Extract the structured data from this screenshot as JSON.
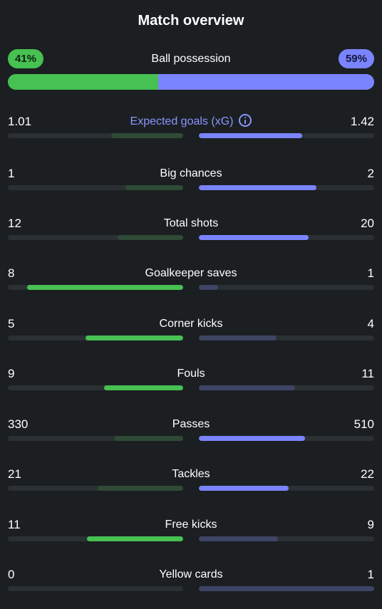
{
  "title": "Match overview",
  "possession": {
    "label": "Ball possession",
    "home_pct": "41%",
    "away_pct": "59%",
    "home_fraction": 0.41
  },
  "colors": {
    "home_win": "#47c152",
    "home_lose": "#2f4a36",
    "away_win": "#7a84ff",
    "away_lose": "#3e4463",
    "accent": "#8c95ff"
  },
  "stats": [
    {
      "label": "Expected goals (xG)",
      "home": "1.01",
      "away": "1.42",
      "home_fill": 0.41,
      "away_fill": 0.59,
      "home_wins": false,
      "away_wins": true,
      "accent": true,
      "icon": "info-icon"
    },
    {
      "label": "Big chances",
      "home": "1",
      "away": "2",
      "home_fill": 0.33,
      "away_fill": 0.67,
      "home_wins": false,
      "away_wins": true
    },
    {
      "label": "Total shots",
      "home": "12",
      "away": "20",
      "home_fill": 0.375,
      "away_fill": 0.625,
      "home_wins": false,
      "away_wins": true
    },
    {
      "label": "Goalkeeper saves",
      "home": "8",
      "away": "1",
      "home_fill": 0.89,
      "away_fill": 0.11,
      "home_wins": true,
      "away_wins": false
    },
    {
      "label": "Corner kicks",
      "home": "5",
      "away": "4",
      "home_fill": 0.556,
      "away_fill": 0.444,
      "home_wins": true,
      "away_wins": false
    },
    {
      "label": "Fouls",
      "home": "9",
      "away": "11",
      "home_fill": 0.45,
      "away_fill": 0.55,
      "home_wins": true,
      "away_wins": false
    },
    {
      "label": "Passes",
      "home": "330",
      "away": "510",
      "home_fill": 0.393,
      "away_fill": 0.607,
      "home_wins": false,
      "away_wins": true
    },
    {
      "label": "Tackles",
      "home": "21",
      "away": "22",
      "home_fill": 0.488,
      "away_fill": 0.512,
      "home_wins": false,
      "away_wins": true
    },
    {
      "label": "Free kicks",
      "home": "11",
      "away": "9",
      "home_fill": 0.55,
      "away_fill": 0.45,
      "home_wins": true,
      "away_wins": false
    },
    {
      "label": "Yellow cards",
      "home": "0",
      "away": "1",
      "home_fill": 0.0,
      "away_fill": 1.0,
      "home_wins": false,
      "away_wins": false
    }
  ]
}
